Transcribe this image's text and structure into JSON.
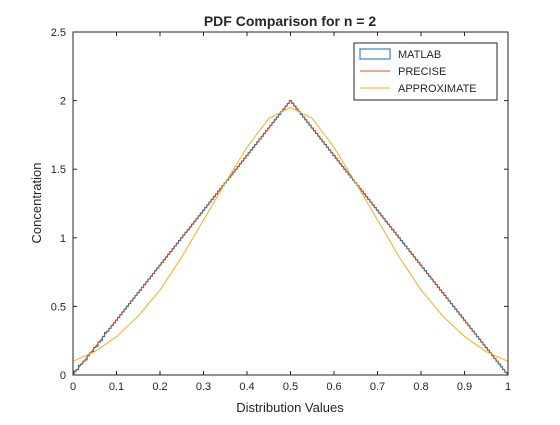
{
  "chart_data": {
    "type": "line",
    "title": "PDF Comparison for n = 2",
    "xlabel": "Distribution Values",
    "ylabel": "Concentration",
    "xlim": [
      0,
      1
    ],
    "ylim": [
      0,
      2.5
    ],
    "xticks": [
      0,
      0.1,
      0.2,
      0.3,
      0.4,
      0.5,
      0.6,
      0.7,
      0.8,
      0.9,
      1
    ],
    "xtick_labels": [
      "0",
      "0.1",
      "0.2",
      "0.3",
      "0.4",
      "0.5",
      "0.6",
      "0.7",
      "0.8",
      "0.9",
      "1"
    ],
    "yticks": [
      0,
      0.5,
      1,
      1.5,
      2,
      2.5
    ],
    "ytick_labels": [
      "0",
      "0.5",
      "1",
      "1.5",
      "2",
      "2.5"
    ],
    "grid": false,
    "legend_position": "top-right",
    "series": [
      {
        "name": "MATLAB",
        "style": "stairs",
        "color": "#0072bd",
        "x": [
          0.0,
          0.005,
          0.01,
          0.015,
          0.02,
          0.025,
          0.03,
          0.035,
          0.04,
          0.045,
          0.05,
          0.055,
          0.06,
          0.065,
          0.07,
          0.075,
          0.08,
          0.085,
          0.09,
          0.095,
          0.1,
          0.105,
          0.11,
          0.115,
          0.12,
          0.125,
          0.13,
          0.135,
          0.14,
          0.145,
          0.15,
          0.155,
          0.16,
          0.165,
          0.17,
          0.175,
          0.18,
          0.185,
          0.19,
          0.195,
          0.2,
          0.205,
          0.21,
          0.215,
          0.22,
          0.225,
          0.23,
          0.235,
          0.24,
          0.245,
          0.25,
          0.255,
          0.26,
          0.265,
          0.27,
          0.275,
          0.28,
          0.285,
          0.29,
          0.295,
          0.3,
          0.305,
          0.31,
          0.315,
          0.32,
          0.325,
          0.33,
          0.335,
          0.34,
          0.345,
          0.35,
          0.355,
          0.36,
          0.365,
          0.37,
          0.375,
          0.38,
          0.385,
          0.39,
          0.395,
          0.4,
          0.405,
          0.41,
          0.415,
          0.42,
          0.425,
          0.43,
          0.435,
          0.44,
          0.445,
          0.45,
          0.455,
          0.46,
          0.465,
          0.47,
          0.475,
          0.48,
          0.485,
          0.49,
          0.495,
          0.5,
          0.505,
          0.51,
          0.515,
          0.52,
          0.525,
          0.53,
          0.535,
          0.54,
          0.545,
          0.55,
          0.555,
          0.56,
          0.565,
          0.57,
          0.575,
          0.58,
          0.585,
          0.59,
          0.595,
          0.6,
          0.605,
          0.61,
          0.615,
          0.62,
          0.625,
          0.63,
          0.635,
          0.64,
          0.645,
          0.65,
          0.655,
          0.66,
          0.665,
          0.67,
          0.675,
          0.68,
          0.685,
          0.69,
          0.695,
          0.7,
          0.705,
          0.71,
          0.715,
          0.72,
          0.725,
          0.73,
          0.735,
          0.74,
          0.745,
          0.75,
          0.755,
          0.76,
          0.765,
          0.77,
          0.775,
          0.78,
          0.785,
          0.79,
          0.795,
          0.8,
          0.805,
          0.81,
          0.815,
          0.82,
          0.825,
          0.83,
          0.835,
          0.84,
          0.845,
          0.85,
          0.855,
          0.86,
          0.865,
          0.87,
          0.875,
          0.88,
          0.885,
          0.89,
          0.895,
          0.9,
          0.905,
          0.91,
          0.915,
          0.92,
          0.925,
          0.93,
          0.935,
          0.94,
          0.945,
          0.95,
          0.955,
          0.96,
          0.965,
          0.97,
          0.975,
          0.98,
          0.985,
          0.99,
          0.995,
          1.0
        ],
        "y": [
          0.01,
          0.03,
          0.04,
          0.07,
          0.08,
          0.1,
          0.11,
          0.14,
          0.16,
          0.17,
          0.2,
          0.21,
          0.24,
          0.25,
          0.28,
          0.31,
          0.32,
          0.34,
          0.36,
          0.38,
          0.4,
          0.42,
          0.44,
          0.46,
          0.48,
          0.5,
          0.52,
          0.54,
          0.56,
          0.58,
          0.6,
          0.62,
          0.64,
          0.66,
          0.68,
          0.7,
          0.72,
          0.74,
          0.76,
          0.78,
          0.8,
          0.82,
          0.84,
          0.86,
          0.88,
          0.9,
          0.92,
          0.94,
          0.96,
          0.98,
          1.0,
          1.02,
          1.04,
          1.06,
          1.08,
          1.1,
          1.12,
          1.14,
          1.16,
          1.18,
          1.2,
          1.22,
          1.24,
          1.26,
          1.28,
          1.3,
          1.32,
          1.34,
          1.36,
          1.38,
          1.4,
          1.42,
          1.44,
          1.46,
          1.48,
          1.5,
          1.52,
          1.54,
          1.56,
          1.58,
          1.6,
          1.62,
          1.64,
          1.66,
          1.68,
          1.7,
          1.72,
          1.74,
          1.76,
          1.78,
          1.8,
          1.82,
          1.84,
          1.86,
          1.88,
          1.9,
          1.92,
          1.94,
          1.96,
          1.98,
          2.0,
          1.98,
          1.96,
          1.94,
          1.92,
          1.9,
          1.88,
          1.86,
          1.84,
          1.82,
          1.8,
          1.78,
          1.76,
          1.74,
          1.72,
          1.7,
          1.68,
          1.66,
          1.64,
          1.62,
          1.6,
          1.58,
          1.56,
          1.54,
          1.52,
          1.5,
          1.48,
          1.46,
          1.44,
          1.42,
          1.4,
          1.38,
          1.36,
          1.34,
          1.32,
          1.3,
          1.28,
          1.26,
          1.24,
          1.22,
          1.2,
          1.18,
          1.16,
          1.14,
          1.12,
          1.1,
          1.08,
          1.06,
          1.04,
          1.02,
          1.0,
          0.98,
          0.96,
          0.94,
          0.92,
          0.9,
          0.88,
          0.86,
          0.84,
          0.82,
          0.8,
          0.78,
          0.76,
          0.74,
          0.72,
          0.7,
          0.68,
          0.66,
          0.64,
          0.62,
          0.6,
          0.58,
          0.56,
          0.54,
          0.52,
          0.5,
          0.48,
          0.46,
          0.44,
          0.42,
          0.4,
          0.38,
          0.36,
          0.34,
          0.32,
          0.3,
          0.28,
          0.26,
          0.24,
          0.22,
          0.2,
          0.18,
          0.16,
          0.14,
          0.12,
          0.1,
          0.08,
          0.06,
          0.04,
          0.02,
          0.01
        ]
      },
      {
        "name": "PRECISE",
        "style": "line",
        "color": "#d95319",
        "x": [
          0,
          0.5,
          1
        ],
        "y": [
          0,
          2,
          0
        ]
      },
      {
        "name": "APPROXIMATE",
        "style": "line",
        "color": "#edb120",
        "x": [
          0.0,
          0.05,
          0.1,
          0.15,
          0.2,
          0.25,
          0.3,
          0.35,
          0.4,
          0.45,
          0.5,
          0.55,
          0.6,
          0.65,
          0.7,
          0.75,
          0.8,
          0.85,
          0.9,
          0.95,
          1.0
        ],
        "y": [
          0.1,
          0.17,
          0.28,
          0.43,
          0.62,
          0.86,
          1.13,
          1.4,
          1.66,
          1.87,
          1.95,
          1.87,
          1.66,
          1.4,
          1.13,
          0.86,
          0.62,
          0.43,
          0.28,
          0.17,
          0.1
        ]
      }
    ]
  }
}
